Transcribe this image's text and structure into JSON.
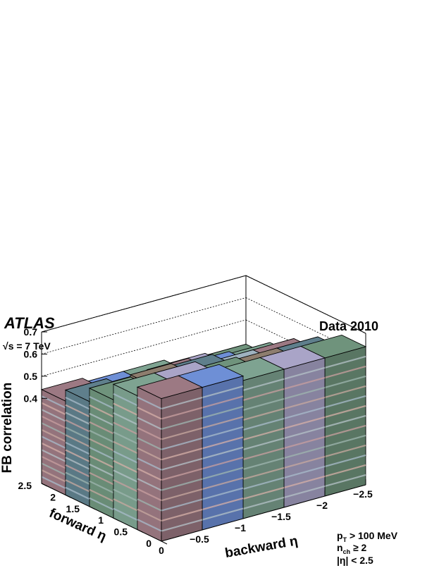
{
  "header": {
    "experiment": "ATLAS",
    "dataset": "Data 2010",
    "energy": "s = 7 TeV",
    "cuts": [
      "p_T > 100 MeV",
      "n_ch ≥ 2",
      "|η| < 2.5"
    ]
  },
  "chart_data": {
    "type": "lego3d",
    "xlabel": "backward η",
    "ylabel": "forward η",
    "zlabel": "FB correlation",
    "x_ticks": [
      "0",
      "−0.5",
      "−1",
      "−1.5",
      "−2",
      "−2.5"
    ],
    "y_ticks": [
      "0",
      "0.5",
      "1",
      "1.5",
      "2",
      "2.5"
    ],
    "z_ticks": [
      "0.4",
      "0.5",
      "0.6",
      "0.7"
    ],
    "xlim": [
      -2.5,
      0
    ],
    "ylim": [
      0,
      2.5
    ],
    "zlim": [
      0.35,
      0.7
    ],
    "x_bins": [
      -0.25,
      -0.75,
      -1.25,
      -1.75,
      -2.25
    ],
    "y_bins": [
      0.25,
      0.75,
      1.25,
      1.75,
      2.25
    ],
    "values": [
      [
        0.66,
        0.66,
        0.64,
        0.64,
        0.64
      ],
      [
        0.62,
        0.62,
        0.59,
        0.58,
        0.58
      ],
      [
        0.55,
        0.56,
        0.55,
        0.52,
        0.52
      ],
      [
        0.49,
        0.47,
        0.48,
        0.46,
        0.45
      ],
      [
        0.44,
        0.42,
        0.42,
        0.4,
        0.39
      ]
    ],
    "palette": [
      "#9c7983",
      "#a9a4c7",
      "#5f7f8c",
      "#6e8fd6",
      "#6f937c",
      "#9fb2c0",
      "#7ea391",
      "#8d7d6e"
    ]
  }
}
